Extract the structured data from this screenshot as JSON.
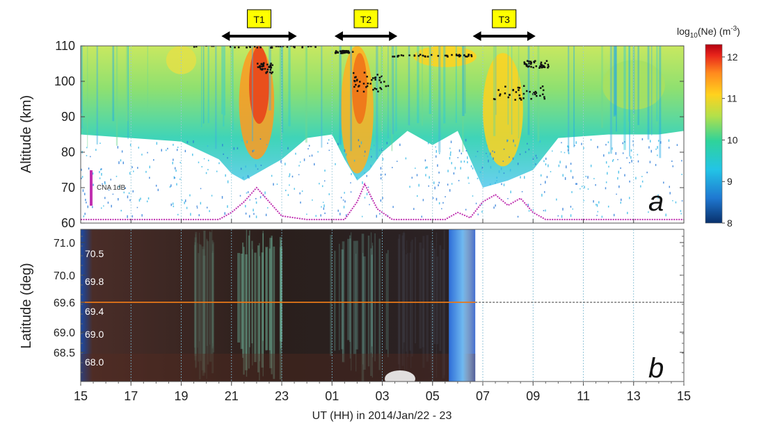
{
  "chart_data": [
    {
      "type": "heatmap",
      "panel_letter": "a",
      "ylabel": "Altitude (km)",
      "ylim": [
        60,
        110
      ],
      "yticks": [
        60,
        70,
        80,
        90,
        100,
        110
      ],
      "colorbar": {
        "label_html_parts": [
          "log",
          "10",
          "(Ne) (m",
          "-3",
          ")"
        ],
        "range": [
          8,
          12.3
        ],
        "ticks": [
          8,
          9,
          10,
          11,
          12
        ],
        "colors": [
          "#08306b",
          "#1f78d1",
          "#23c4e6",
          "#2fd39a",
          "#b3e04a",
          "#ffd21e",
          "#ff8a1e",
          "#e8251b",
          "#b30010"
        ]
      },
      "periods": [
        {
          "label": "T1",
          "start": 20.6,
          "end": 23.6
        },
        {
          "label": "T2",
          "start": 25.1,
          "end": 27.6
        },
        {
          "label": "T3",
          "start": 30.6,
          "end": 33.1
        }
      ],
      "cna_annotation": "CNA 1dB",
      "cna_scale_color": "#c030b0",
      "density_lower_edge_km": {
        "x": [
          15,
          17,
          19,
          20.5,
          21,
          21.5,
          22,
          22.5,
          23,
          24,
          25,
          25.5,
          26,
          26.5,
          27,
          28,
          29,
          30,
          30.5,
          31,
          32,
          33,
          34,
          36,
          38,
          39
        ],
        "y": [
          85,
          84,
          83,
          78,
          74,
          72,
          74,
          76,
          78,
          84,
          85,
          78,
          72,
          75,
          80,
          86,
          82,
          86,
          78,
          70,
          72,
          75,
          84,
          85,
          85,
          86
        ]
      }
    },
    {
      "type": "heatmap",
      "panel_letter": "b",
      "ylabel": "Latitude (deg)",
      "yticks": [
        68.5,
        69.0,
        69.6,
        70.0,
        71.0
      ],
      "ytick_labels": [
        "68.5",
        "69.0",
        "69.6",
        "70.0",
        "71.0"
      ],
      "image_labels": [
        "70.5",
        "69.8",
        "69.4",
        "69.0",
        "68.0"
      ],
      "reference_latitude": 69.6,
      "reference_line_colors": [
        "#e87818",
        "#333333"
      ],
      "data_end_hour": 30.7
    }
  ],
  "shared_x": {
    "label": "UT (HH)  in 2014/Jan/22 - 23",
    "range": [
      15,
      39
    ],
    "tick_hours": [
      15,
      17,
      19,
      21,
      23,
      25,
      27,
      29,
      31,
      33,
      35,
      37,
      39
    ],
    "tick_labels": [
      "15",
      "17",
      "19",
      "21",
      "23",
      "01",
      "03",
      "05",
      "07",
      "09",
      "11",
      "13",
      "15"
    ]
  }
}
